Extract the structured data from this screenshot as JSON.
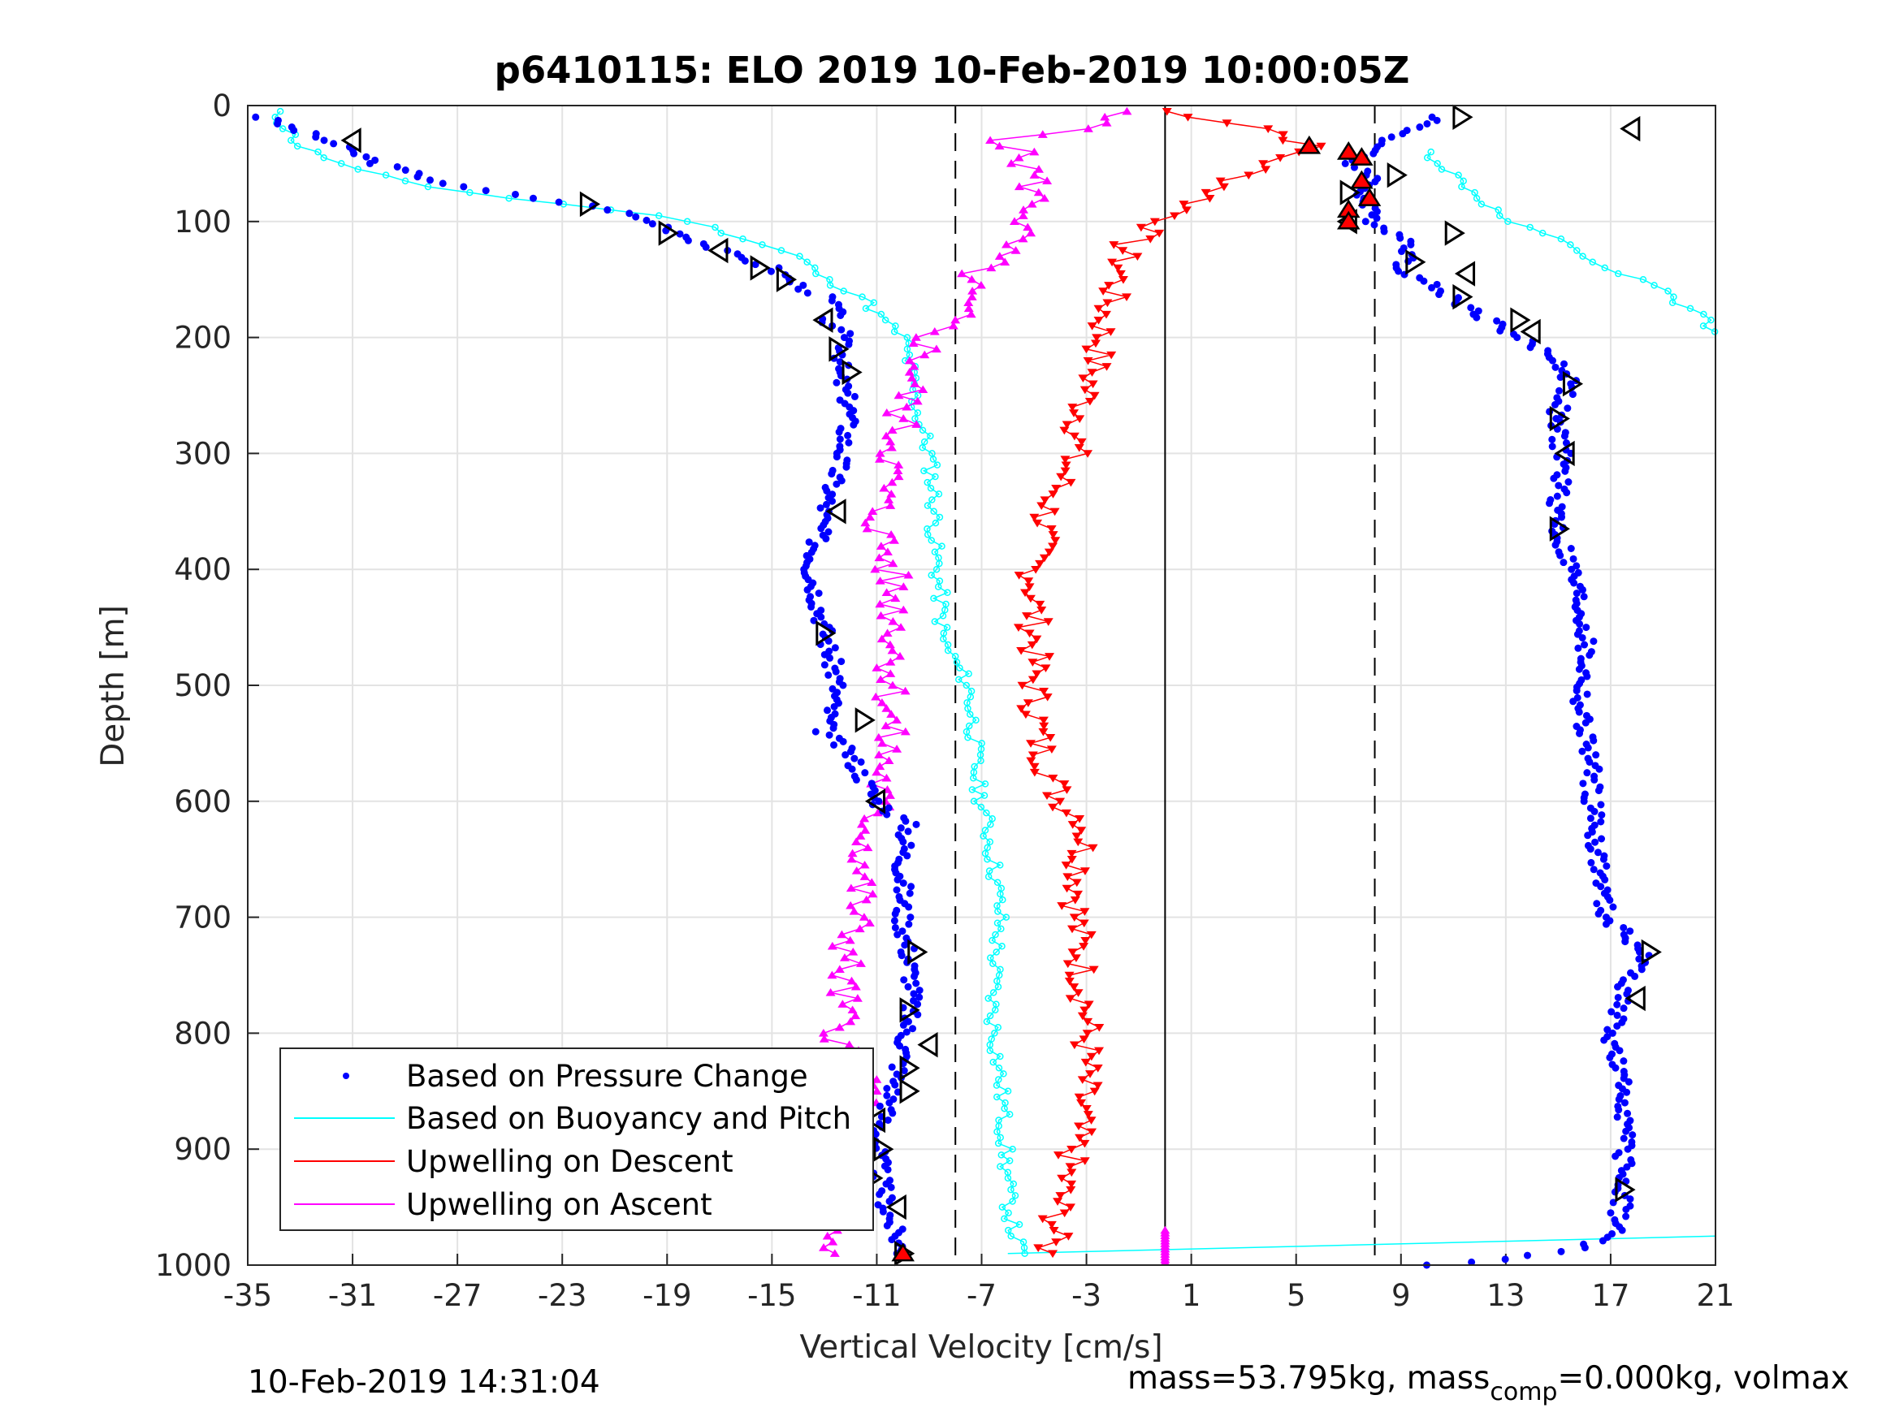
{
  "chart_data": {
    "type": "scatter",
    "title": "p6410115: ELO 2019 10-Feb-2019 10:00:05Z",
    "xlabel": "Vertical Velocity [cm/s]",
    "ylabel": "Depth [m]",
    "xlim": [
      -35,
      21
    ],
    "ylim": [
      0,
      1000
    ],
    "y_reversed": true,
    "xticks": [
      "-35",
      "-31",
      "-27",
      "-23",
      "-19",
      "-15",
      "-11",
      "-7",
      "-3",
      "1",
      "5",
      "9",
      "13",
      "17",
      "21"
    ],
    "yticks": [
      "0",
      "100",
      "200",
      "300",
      "400",
      "500",
      "600",
      "700",
      "800",
      "900",
      "1000"
    ],
    "grid": true,
    "legend_position": "bottom-left",
    "reference_lines": {
      "solid_x": 0,
      "dashed_x": [
        -8,
        8
      ]
    },
    "series": [
      {
        "name": "Based on Pressure Change",
        "color": "#0000ff",
        "marker": "dot",
        "descent": [
          [
            -34.5,
            10
          ],
          [
            -32,
            30
          ],
          [
            -30,
            50
          ],
          [
            -27,
            70
          ],
          [
            -24,
            80
          ],
          [
            -21,
            90
          ],
          [
            -19,
            105
          ],
          [
            -17,
            125
          ],
          [
            -15,
            140
          ],
          [
            -14,
            155
          ],
          [
            -13,
            165
          ],
          [
            -12.5,
            175
          ],
          [
            -13,
            190
          ],
          [
            -12,
            200
          ],
          [
            -12.5,
            230
          ],
          [
            -12,
            260
          ],
          [
            -12.3,
            300
          ],
          [
            -13,
            350
          ],
          [
            -13.5,
            400
          ],
          [
            -13,
            450
          ],
          [
            -12.5,
            500
          ],
          [
            -13,
            540
          ],
          [
            -12,
            560
          ],
          [
            -11,
            600
          ],
          [
            -9.8,
            620
          ],
          [
            -10,
            650
          ],
          [
            -10,
            700
          ],
          [
            -9.8,
            730
          ],
          [
            -9.6,
            760
          ],
          [
            -9.8,
            790
          ],
          [
            -10,
            820
          ],
          [
            -10.5,
            860
          ],
          [
            -11,
            890
          ],
          [
            -10.8,
            930
          ],
          [
            -10.5,
            960
          ],
          [
            -10,
            990
          ]
        ],
        "ascent": [
          [
            10.5,
            10
          ],
          [
            8.5,
            30
          ],
          [
            7,
            50
          ],
          [
            8,
            60
          ],
          [
            7.5,
            80
          ],
          [
            8,
            100
          ],
          [
            9.5,
            120
          ],
          [
            9,
            140
          ],
          [
            10.5,
            160
          ],
          [
            12,
            180
          ],
          [
            13.5,
            200
          ],
          [
            15,
            220
          ],
          [
            15.5,
            240
          ],
          [
            14.8,
            270
          ],
          [
            15.2,
            300
          ],
          [
            15,
            340
          ],
          [
            15,
            370
          ],
          [
            15.5,
            400
          ],
          [
            16,
            450
          ],
          [
            16,
            480
          ],
          [
            15.8,
            520
          ],
          [
            16.2,
            560
          ],
          [
            16.3,
            600
          ],
          [
            16.5,
            650
          ],
          [
            16.8,
            700
          ],
          [
            18.3,
            730
          ],
          [
            17.6,
            760
          ],
          [
            17,
            800
          ],
          [
            17.2,
            830
          ],
          [
            17.6,
            860
          ],
          [
            17.5,
            900
          ],
          [
            17.5,
            940
          ],
          [
            17.2,
            970
          ],
          [
            16,
            985
          ],
          [
            13,
            995
          ],
          [
            10,
            1000
          ]
        ]
      },
      {
        "name": "Based on Buoyancy and Pitch",
        "color": "#00ffff",
        "marker": "circle",
        "descent": [
          [
            -34,
            5
          ],
          [
            -33,
            35
          ],
          [
            -31,
            55
          ],
          [
            -28,
            70
          ],
          [
            -25,
            80
          ],
          [
            -21,
            90
          ],
          [
            -18,
            100
          ],
          [
            -16,
            115
          ],
          [
            -14,
            130
          ],
          [
            -13,
            150
          ],
          [
            -11.5,
            165
          ],
          [
            -11,
            180
          ],
          [
            -10,
            200
          ],
          [
            -9.8,
            220
          ],
          [
            -9.5,
            260
          ],
          [
            -9,
            300
          ],
          [
            -8.8,
            340
          ],
          [
            -8.8,
            380
          ],
          [
            -8.6,
            420
          ],
          [
            -8.5,
            460
          ],
          [
            -7.5,
            500
          ],
          [
            -7.3,
            540
          ],
          [
            -7.2,
            580
          ],
          [
            -6.8,
            620
          ],
          [
            -6.5,
            660
          ],
          [
            -6.3,
            700
          ],
          [
            -6.5,
            740
          ],
          [
            -6.6,
            780
          ],
          [
            -6.4,
            820
          ],
          [
            -6.2,
            860
          ],
          [
            -6.1,
            900
          ],
          [
            -6,
            940
          ],
          [
            -5.8,
            970
          ],
          [
            -5.5,
            990
          ]
        ],
        "ascent": [
          [
            10,
            40
          ],
          [
            11,
            60
          ],
          [
            12,
            80
          ],
          [
            13,
            100
          ],
          [
            15.5,
            120
          ],
          [
            16.5,
            140
          ],
          [
            18,
            150
          ],
          [
            19,
            160
          ],
          [
            19.5,
            170
          ],
          [
            20.5,
            180
          ],
          [
            20.8,
            195
          ]
        ]
      },
      {
        "name": "Upwelling on Descent",
        "color": "#ff0000",
        "marker": "triangle-down",
        "values": [
          [
            0,
            5
          ],
          [
            4,
            20
          ],
          [
            5.5,
            35
          ],
          [
            3,
            60
          ],
          [
            1.5,
            80
          ],
          [
            0,
            100
          ],
          [
            -1.5,
            120
          ],
          [
            -1.8,
            150
          ],
          [
            -2.3,
            180
          ],
          [
            -2.5,
            210
          ],
          [
            -3,
            250
          ],
          [
            -3.5,
            300
          ],
          [
            -4.5,
            350
          ],
          [
            -5,
            400
          ],
          [
            -5,
            450
          ],
          [
            -5,
            500
          ],
          [
            -4.8,
            550
          ],
          [
            -4,
            600
          ],
          [
            -3,
            620
          ],
          [
            -3.2,
            660
          ],
          [
            -3.4,
            700
          ],
          [
            -3.2,
            740
          ],
          [
            -3,
            780
          ],
          [
            -3,
            820
          ],
          [
            -3.2,
            860
          ],
          [
            -3.5,
            900
          ],
          [
            -4,
            940
          ],
          [
            -4.2,
            970
          ],
          [
            -4.5,
            990
          ]
        ]
      },
      {
        "name": "Upwelling on Ascent",
        "color": "#ff00ff",
        "marker": "triangle-up",
        "values": [
          [
            -2,
            5
          ],
          [
            -3,
            20
          ],
          [
            -6,
            30
          ],
          [
            -5,
            60
          ],
          [
            -5,
            90
          ],
          [
            -6,
            120
          ],
          [
            -7.5,
            150
          ],
          [
            -8,
            180
          ],
          [
            -9,
            200
          ],
          [
            -9.5,
            230
          ],
          [
            -10,
            260
          ],
          [
            -10.3,
            300
          ],
          [
            -11,
            350
          ],
          [
            -10.5,
            400
          ],
          [
            -10.2,
            450
          ],
          [
            -10.4,
            500
          ],
          [
            -10.6,
            550
          ],
          [
            -11,
            600
          ],
          [
            -11.5,
            650
          ],
          [
            -11.8,
            700
          ],
          [
            -12.3,
            750
          ],
          [
            -12.4,
            800
          ],
          [
            -11.5,
            850
          ],
          [
            -12,
            900
          ],
          [
            -12.5,
            950
          ],
          [
            -12.8,
            990
          ]
        ]
      },
      {
        "name": "",
        "color": "#000000",
        "marker": "triangle-open",
        "values": [
          [
            -31,
            30
          ],
          [
            -22,
            85
          ],
          [
            -19,
            110
          ],
          [
            -17,
            125
          ],
          [
            -15.5,
            140
          ],
          [
            -14.5,
            150
          ],
          [
            -13,
            185
          ],
          [
            -12.5,
            210
          ],
          [
            -12,
            230
          ],
          [
            -12.5,
            350
          ],
          [
            -13,
            455
          ],
          [
            -11.5,
            530
          ],
          [
            -11,
            600
          ],
          [
            -9.5,
            730
          ],
          [
            -9.8,
            780
          ],
          [
            -9,
            810
          ],
          [
            -9.8,
            830
          ],
          [
            -9.8,
            850
          ],
          [
            -11,
            875
          ],
          [
            -10.8,
            900
          ],
          [
            -11.2,
            925
          ],
          [
            -10.2,
            950
          ],
          [
            -10,
            990
          ],
          [
            11.3,
            10
          ],
          [
            17.8,
            20
          ],
          [
            8.8,
            60
          ],
          [
            7,
            75
          ],
          [
            7,
            100
          ],
          [
            11,
            110
          ],
          [
            9.5,
            135
          ],
          [
            11.5,
            145
          ],
          [
            11.3,
            165
          ],
          [
            13.5,
            185
          ],
          [
            14,
            195
          ],
          [
            15.5,
            240
          ],
          [
            15,
            270
          ],
          [
            15.3,
            300
          ],
          [
            15,
            365
          ],
          [
            18.5,
            730
          ],
          [
            18,
            770
          ],
          [
            17.5,
            935
          ]
        ]
      },
      {
        "name": "",
        "color": "#ff0000",
        "marker": "triangle-up-outlined",
        "values": [
          [
            5.5,
            35
          ],
          [
            7,
            40
          ],
          [
            7.5,
            45
          ],
          [
            7.5,
            65
          ],
          [
            7.8,
            80
          ],
          [
            7,
            90
          ],
          [
            7,
            100
          ],
          [
            -10,
            990
          ]
        ]
      }
    ]
  },
  "footer": {
    "timestamp": "10-Feb-2019 14:31:04",
    "mass_text_a": "mass=53.795kg, mass",
    "mass_sub": "comp",
    "mass_text_b": "=0.000kg, volmax"
  }
}
